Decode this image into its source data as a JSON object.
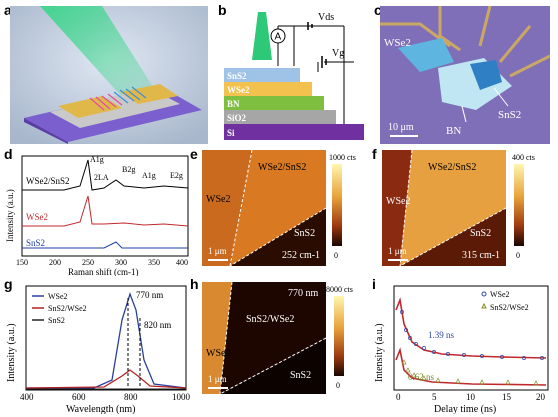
{
  "panel_labels": [
    "a",
    "b",
    "c",
    "d",
    "e",
    "f",
    "g",
    "h",
    "i"
  ],
  "panel_b": {
    "layers": [
      "SnS2",
      "WSe2",
      "BN",
      "SiO2",
      "Si"
    ],
    "ammeter": "A",
    "vds": "Vds",
    "vg": "Vg",
    "colors": {
      "SnS2": "#9ec3e6",
      "WSe2": "#f2c14e",
      "BN": "#7fbf3f",
      "SiO2": "#a6a6a6",
      "Si": "#7030a0",
      "beam": "#2dc979"
    }
  },
  "panel_c": {
    "labels": [
      "WSe2",
      "BN",
      "SnS2"
    ],
    "scalebar": "10 μm"
  },
  "panel_d": {
    "ylabel": "Intensity (a.u.)",
    "xlabel": "Raman shift (cm-1)",
    "xticks": [
      "150",
      "200",
      "250",
      "300",
      "350",
      "400"
    ],
    "series_labels": [
      "WSe2/SnS2",
      "WSe2",
      "SnS2"
    ],
    "peak_labels": [
      "A1g",
      "2LA",
      "B2g",
      "A1g",
      "E2g"
    ]
  },
  "panel_e": {
    "labels": [
      "WSe2/SnS2",
      "WSe2",
      "SnS2"
    ],
    "wavenumber": "252 cm-1",
    "scalebar": "1 μm",
    "cbar_top": "1000 cts",
    "cbar_bottom": "0"
  },
  "panel_f": {
    "labels": [
      "WSe2/SnS2",
      "WSe2",
      "SnS2"
    ],
    "wavenumber": "315 cm-1",
    "scalebar": "1 μm",
    "cbar_top": "400 cts",
    "cbar_bottom": "0"
  },
  "panel_g": {
    "ylabel": "Intensity (a.u.)",
    "xlabel": "Wavelength (nm)",
    "xticks": [
      "400",
      "600",
      "800",
      "1000"
    ],
    "legend": [
      "WSe2",
      "SnS2/WSe2",
      "SnS2"
    ],
    "annotations": [
      "770 nm",
      "820 nm"
    ],
    "series_colors": [
      "#2b3f9e",
      "#b22222",
      "#222222"
    ]
  },
  "panel_h": {
    "labels": [
      "770 nm",
      "SnS2/WSe2",
      "WSe2",
      "SnS2"
    ],
    "scalebar": "1 μm",
    "cbar_top": "8000 cts",
    "cbar_bottom": "0"
  },
  "panel_i": {
    "ylabel": "Intensity (a.u.)",
    "xlabel": "Delay time (ns)",
    "xticks": [
      "0",
      "5",
      "10",
      "15",
      "20"
    ],
    "legend": [
      "WSe2",
      "SnS2/WSe2"
    ],
    "annotations": [
      "1.39 ns",
      "0.62 ns"
    ],
    "series_colors": [
      "#3048a8",
      "#8a8a2a"
    ]
  }
}
